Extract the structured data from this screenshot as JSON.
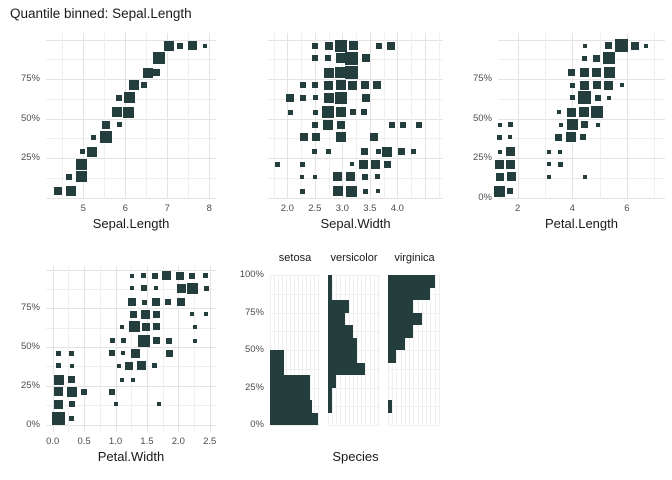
{
  "title": "Quantile binned: Sepal.Length",
  "colors": {
    "square": "#233e3d",
    "grid_minor": "#efefef",
    "grid_major": "#e3e3e3",
    "axis_text": "#4d4d4d",
    "text": "#1a1a1a",
    "background": "#ffffff"
  },
  "grid": {
    "y_major": [
      0,
      25,
      50,
      75,
      100
    ],
    "y_minor": [
      12.5,
      37.5,
      62.5,
      87.5
    ]
  },
  "chart_data": [
    {
      "type": "scatter",
      "variant": "quantile-binned-squares",
      "xlabel": "Sepal.Length",
      "ylabel": "",
      "x_range": [
        4.11,
        8.16
      ],
      "y_range": [
        0,
        100
      ],
      "x_ticks": [
        {
          "v": 5,
          "label": "5"
        },
        {
          "v": 6,
          "label": "6"
        },
        {
          "v": 7,
          "label": "7"
        },
        {
          "v": 8,
          "label": "8"
        }
      ],
      "x_minor": [
        4.5,
        5.5,
        6.5,
        7.5
      ],
      "x_major": [
        5,
        6,
        7,
        8
      ],
      "y_ticks": [
        {
          "v": 25,
          "label": "25%"
        },
        {
          "v": 50,
          "label": "50%"
        },
        {
          "v": 75,
          "label": "75%"
        }
      ],
      "points": [
        [
          4.4,
          4,
          8
        ],
        [
          4.7,
          4,
          10
        ],
        [
          4.67,
          13,
          6
        ],
        [
          4.95,
          13,
          11
        ],
        [
          4.95,
          21,
          11
        ],
        [
          4.98,
          29,
          5
        ],
        [
          5.2,
          29,
          10
        ],
        [
          5.25,
          38,
          5
        ],
        [
          5.55,
          38,
          12
        ],
        [
          5.55,
          46,
          8
        ],
        [
          5.85,
          46,
          5
        ],
        [
          5.8,
          54,
          10
        ],
        [
          6.08,
          54,
          11
        ],
        [
          5.85,
          63,
          6
        ],
        [
          6.1,
          63,
          11
        ],
        [
          6.2,
          71,
          10
        ],
        [
          6.45,
          71,
          6
        ],
        [
          6.55,
          79,
          10
        ],
        [
          6.75,
          79,
          7
        ],
        [
          6.8,
          88,
          12
        ],
        [
          7.05,
          96,
          10
        ],
        [
          7.3,
          96,
          6
        ],
        [
          7.6,
          96,
          9
        ],
        [
          7.9,
          96,
          4
        ]
      ]
    },
    {
      "type": "scatter",
      "variant": "quantile-binned-squares",
      "xlabel": "Sepal.Width",
      "ylabel": "",
      "x_range": [
        1.65,
        4.83
      ],
      "y_range": [
        0,
        100
      ],
      "x_ticks": [
        {
          "v": 2,
          "label": "2.0"
        },
        {
          "v": 2.5,
          "label": "2.5"
        },
        {
          "v": 3,
          "label": "3.0"
        },
        {
          "v": 3.5,
          "label": "3.5"
        },
        {
          "v": 4,
          "label": "4.0"
        }
      ],
      "x_minor": [
        1.75,
        2.25,
        2.75,
        3.25,
        3.75,
        4.25,
        4.75
      ],
      "x_major": [
        2,
        2.5,
        3,
        3.5,
        4,
        4.5
      ],
      "y_ticks": [],
      "points": [
        [
          2.51,
          96,
          6
        ],
        [
          2.75,
          96,
          8
        ],
        [
          2.98,
          96,
          12
        ],
        [
          3.21,
          96,
          9
        ],
        [
          3.66,
          96,
          6
        ],
        [
          3.88,
          96,
          8
        ],
        [
          2.51,
          88,
          6
        ],
        [
          2.74,
          88,
          6
        ],
        [
          2.97,
          88,
          10
        ],
        [
          3.17,
          88,
          13
        ],
        [
          3.43,
          88,
          8
        ],
        [
          2.75,
          79,
          10
        ],
        [
          2.97,
          79,
          11
        ],
        [
          3.17,
          79,
          13
        ],
        [
          2.29,
          71,
          6
        ],
        [
          2.51,
          71,
          6
        ],
        [
          2.75,
          71,
          9
        ],
        [
          2.97,
          71,
          10
        ],
        [
          3.19,
          71,
          9
        ],
        [
          3.41,
          71,
          8
        ],
        [
          3.63,
          71,
          8
        ],
        [
          2.05,
          63,
          8
        ],
        [
          2.29,
          63,
          6
        ],
        [
          2.51,
          63,
          5
        ],
        [
          2.75,
          63,
          10
        ],
        [
          2.97,
          63,
          12
        ],
        [
          3.43,
          63,
          8
        ],
        [
          2.06,
          54,
          5
        ],
        [
          2.51,
          54,
          5
        ],
        [
          2.74,
          54,
          12
        ],
        [
          2.97,
          54,
          10
        ],
        [
          3.19,
          54,
          6
        ],
        [
          3.4,
          54,
          6
        ],
        [
          2.51,
          46,
          6
        ],
        [
          2.74,
          46,
          10
        ],
        [
          2.97,
          46,
          8
        ],
        [
          3.9,
          46,
          6
        ],
        [
          4.1,
          46,
          6
        ],
        [
          4.4,
          46,
          6
        ],
        [
          2.3,
          38,
          8
        ],
        [
          2.52,
          38,
          8
        ],
        [
          2.97,
          38,
          10
        ],
        [
          3.58,
          38,
          8
        ],
        [
          2.5,
          29,
          5
        ],
        [
          2.74,
          29,
          5
        ],
        [
          3.41,
          29,
          7
        ],
        [
          3.65,
          29,
          5
        ],
        [
          3.82,
          29,
          10
        ],
        [
          4.07,
          29,
          7
        ],
        [
          4.3,
          29,
          5
        ],
        [
          1.83,
          21,
          5
        ],
        [
          2.28,
          21,
          5
        ],
        [
          3.18,
          21,
          4
        ],
        [
          3.39,
          21,
          9
        ],
        [
          3.6,
          21,
          9
        ],
        [
          3.83,
          21,
          7
        ],
        [
          2.27,
          13,
          4
        ],
        [
          2.5,
          13,
          4
        ],
        [
          2.92,
          13,
          9
        ],
        [
          3.15,
          13,
          9
        ],
        [
          3.41,
          13,
          6
        ],
        [
          3.64,
          13,
          5
        ],
        [
          2.27,
          4,
          5
        ],
        [
          2.92,
          4,
          10
        ],
        [
          3.16,
          4,
          11
        ],
        [
          3.42,
          4,
          5
        ],
        [
          3.65,
          4,
          4
        ]
      ]
    },
    {
      "type": "scatter",
      "variant": "quantile-binned-squares",
      "xlabel": "Petal.Length",
      "ylabel": "",
      "x_range": [
        1.28,
        7.4
      ],
      "y_range": [
        0,
        100
      ],
      "x_ticks": [
        {
          "v": 2,
          "label": "2"
        },
        {
          "v": 4,
          "label": "4"
        },
        {
          "v": 6,
          "label": "6"
        }
      ],
      "x_minor": [
        1,
        3,
        5,
        7
      ],
      "x_major": [
        2,
        4,
        6
      ],
      "y_ticks": [
        {
          "v": 0,
          "label": "0%"
        },
        {
          "v": 25,
          "label": "25%"
        },
        {
          "v": 50,
          "label": "50%"
        },
        {
          "v": 75,
          "label": "75%"
        }
      ],
      "points": [
        [
          1.33,
          4,
          11
        ],
        [
          1.73,
          4,
          6
        ],
        [
          1.34,
          13,
          8
        ],
        [
          1.76,
          13,
          9
        ],
        [
          3.15,
          13,
          4
        ],
        [
          4.47,
          13,
          4
        ],
        [
          1.34,
          21,
          9
        ],
        [
          1.73,
          21,
          9
        ],
        [
          3.15,
          21,
          4
        ],
        [
          3.58,
          21,
          5
        ],
        [
          1.35,
          29,
          4
        ],
        [
          1.74,
          29,
          9
        ],
        [
          3.13,
          29,
          4
        ],
        [
          3.55,
          29,
          4
        ],
        [
          1.34,
          38,
          5
        ],
        [
          1.73,
          38,
          4
        ],
        [
          3.51,
          38,
          7
        ],
        [
          3.95,
          38,
          10
        ],
        [
          4.4,
          38,
          6
        ],
        [
          1.35,
          46,
          4
        ],
        [
          1.75,
          46,
          5
        ],
        [
          3.58,
          46,
          4
        ],
        [
          4.0,
          46,
          11
        ],
        [
          4.44,
          46,
          7
        ],
        [
          4.95,
          46,
          4
        ],
        [
          3.51,
          54,
          4
        ],
        [
          3.97,
          54,
          9
        ],
        [
          4.44,
          54,
          10
        ],
        [
          4.89,
          54,
          12
        ],
        [
          4.0,
          63,
          5
        ],
        [
          4.44,
          63,
          13
        ],
        [
          4.95,
          63,
          6
        ],
        [
          5.34,
          63,
          4
        ],
        [
          4.0,
          71,
          5
        ],
        [
          4.44,
          71,
          9
        ],
        [
          4.89,
          71,
          8
        ],
        [
          5.34,
          71,
          9
        ],
        [
          5.82,
          71,
          4
        ],
        [
          3.98,
          79,
          7
        ],
        [
          4.44,
          79,
          9
        ],
        [
          4.89,
          79,
          9
        ],
        [
          5.37,
          79,
          11
        ],
        [
          4.44,
          88,
          5
        ],
        [
          4.89,
          88,
          7
        ],
        [
          5.34,
          88,
          12
        ],
        [
          4.47,
          96,
          4
        ],
        [
          5.34,
          96,
          7
        ],
        [
          5.8,
          96,
          13
        ],
        [
          6.28,
          96,
          8
        ],
        [
          6.7,
          96,
          4
        ]
      ]
    },
    {
      "type": "scatter",
      "variant": "quantile-binned-squares",
      "xlabel": "Petal.Width",
      "ylabel": "",
      "x_range": [
        -0.11,
        2.6
      ],
      "y_range": [
        0,
        100
      ],
      "x_ticks": [
        {
          "v": 0,
          "label": "0.0"
        },
        {
          "v": 0.5,
          "label": "0.5"
        },
        {
          "v": 1,
          "label": "1.0"
        },
        {
          "v": 1.5,
          "label": "1.5"
        },
        {
          "v": 2,
          "label": "2.0"
        },
        {
          "v": 2.5,
          "label": "2.5"
        }
      ],
      "x_minor": [
        0.25,
        0.75,
        1.25,
        1.75,
        2.25
      ],
      "x_major": [
        0,
        0.5,
        1,
        1.5,
        2,
        2.5
      ],
      "y_ticks": [
        {
          "v": 0,
          "label": "0%"
        },
        {
          "v": 25,
          "label": "25%"
        },
        {
          "v": 50,
          "label": "50%"
        },
        {
          "v": 75,
          "label": "75%"
        }
      ],
      "points": [
        [
          0.1,
          4,
          13
        ],
        [
          0.3,
          4,
          5
        ],
        [
          0.1,
          13,
          9
        ],
        [
          0.3,
          13,
          6
        ],
        [
          1.0,
          13,
          4
        ],
        [
          1.7,
          13,
          4
        ],
        [
          0.1,
          21,
          9
        ],
        [
          0.3,
          21,
          10
        ],
        [
          0.5,
          21,
          6
        ],
        [
          0.95,
          21,
          6
        ],
        [
          0.1,
          29,
          10
        ],
        [
          0.3,
          29,
          7
        ],
        [
          1.1,
          29,
          4
        ],
        [
          1.28,
          29,
          4
        ],
        [
          0.1,
          38,
          5
        ],
        [
          0.3,
          38,
          4
        ],
        [
          1.05,
          38,
          4
        ],
        [
          1.22,
          38,
          8
        ],
        [
          1.42,
          38,
          9
        ],
        [
          1.62,
          38,
          5
        ],
        [
          0.1,
          46,
          5
        ],
        [
          0.3,
          46,
          5
        ],
        [
          0.95,
          46,
          6
        ],
        [
          1.12,
          46,
          4
        ],
        [
          1.32,
          46,
          9
        ],
        [
          1.86,
          46,
          7
        ],
        [
          0.95,
          54,
          5
        ],
        [
          1.12,
          54,
          5
        ],
        [
          1.45,
          54,
          12
        ],
        [
          1.65,
          54,
          7
        ],
        [
          1.85,
          54,
          6
        ],
        [
          2.26,
          54,
          4
        ],
        [
          1.1,
          63,
          4
        ],
        [
          1.3,
          63,
          11
        ],
        [
          1.48,
          63,
          8
        ],
        [
          1.66,
          63,
          7
        ],
        [
          2.26,
          63,
          4
        ],
        [
          1.28,
          71,
          7
        ],
        [
          1.47,
          71,
          9
        ],
        [
          1.65,
          71,
          7
        ],
        [
          2.22,
          71,
          4
        ],
        [
          2.44,
          71,
          4
        ],
        [
          1.27,
          79,
          8
        ],
        [
          1.46,
          79,
          5
        ],
        [
          1.64,
          79,
          8
        ],
        [
          1.83,
          79,
          6
        ],
        [
          2.04,
          79,
          8
        ],
        [
          1.27,
          88,
          4
        ],
        [
          1.46,
          88,
          6
        ],
        [
          1.64,
          88,
          4
        ],
        [
          2.05,
          88,
          9
        ],
        [
          2.23,
          88,
          11
        ],
        [
          2.45,
          88,
          5
        ],
        [
          1.27,
          96,
          4
        ],
        [
          1.45,
          96,
          5
        ],
        [
          1.63,
          96,
          6
        ],
        [
          1.81,
          96,
          9
        ],
        [
          2.03,
          96,
          8
        ],
        [
          2.22,
          96,
          6
        ],
        [
          2.43,
          96,
          5
        ]
      ]
    },
    {
      "type": "bar",
      "variant": "horizontal-histogram-by-facet",
      "xlabel": "Species",
      "ylabel": "",
      "y_range": [
        0,
        100
      ],
      "bins_pct_top_to_bottom": [
        96,
        88,
        79,
        71,
        63,
        54,
        46,
        38,
        29,
        21,
        13,
        4
      ],
      "max_count": 12.5,
      "y_ticks": [
        {
          "v": 0,
          "label": "0%"
        },
        {
          "v": 25,
          "label": "25%"
        },
        {
          "v": 50,
          "label": "50%"
        },
        {
          "v": 75,
          "label": "75%"
        },
        {
          "v": 100,
          "label": "100%"
        }
      ],
      "facets": [
        {
          "label": "setosa",
          "counts": [
            0,
            0,
            0,
            0,
            0,
            0,
            3.5,
            3.5,
            10,
            10,
            10.5,
            12
          ]
        },
        {
          "label": "versicolor",
          "counts": [
            1,
            1,
            5,
            4,
            6,
            7,
            7,
            9,
            2,
            1,
            1,
            0
          ]
        },
        {
          "label": "virginica",
          "counts": [
            11,
            10,
            6,
            8,
            6,
            4,
            2,
            0,
            0,
            0,
            1,
            0
          ]
        }
      ]
    }
  ]
}
